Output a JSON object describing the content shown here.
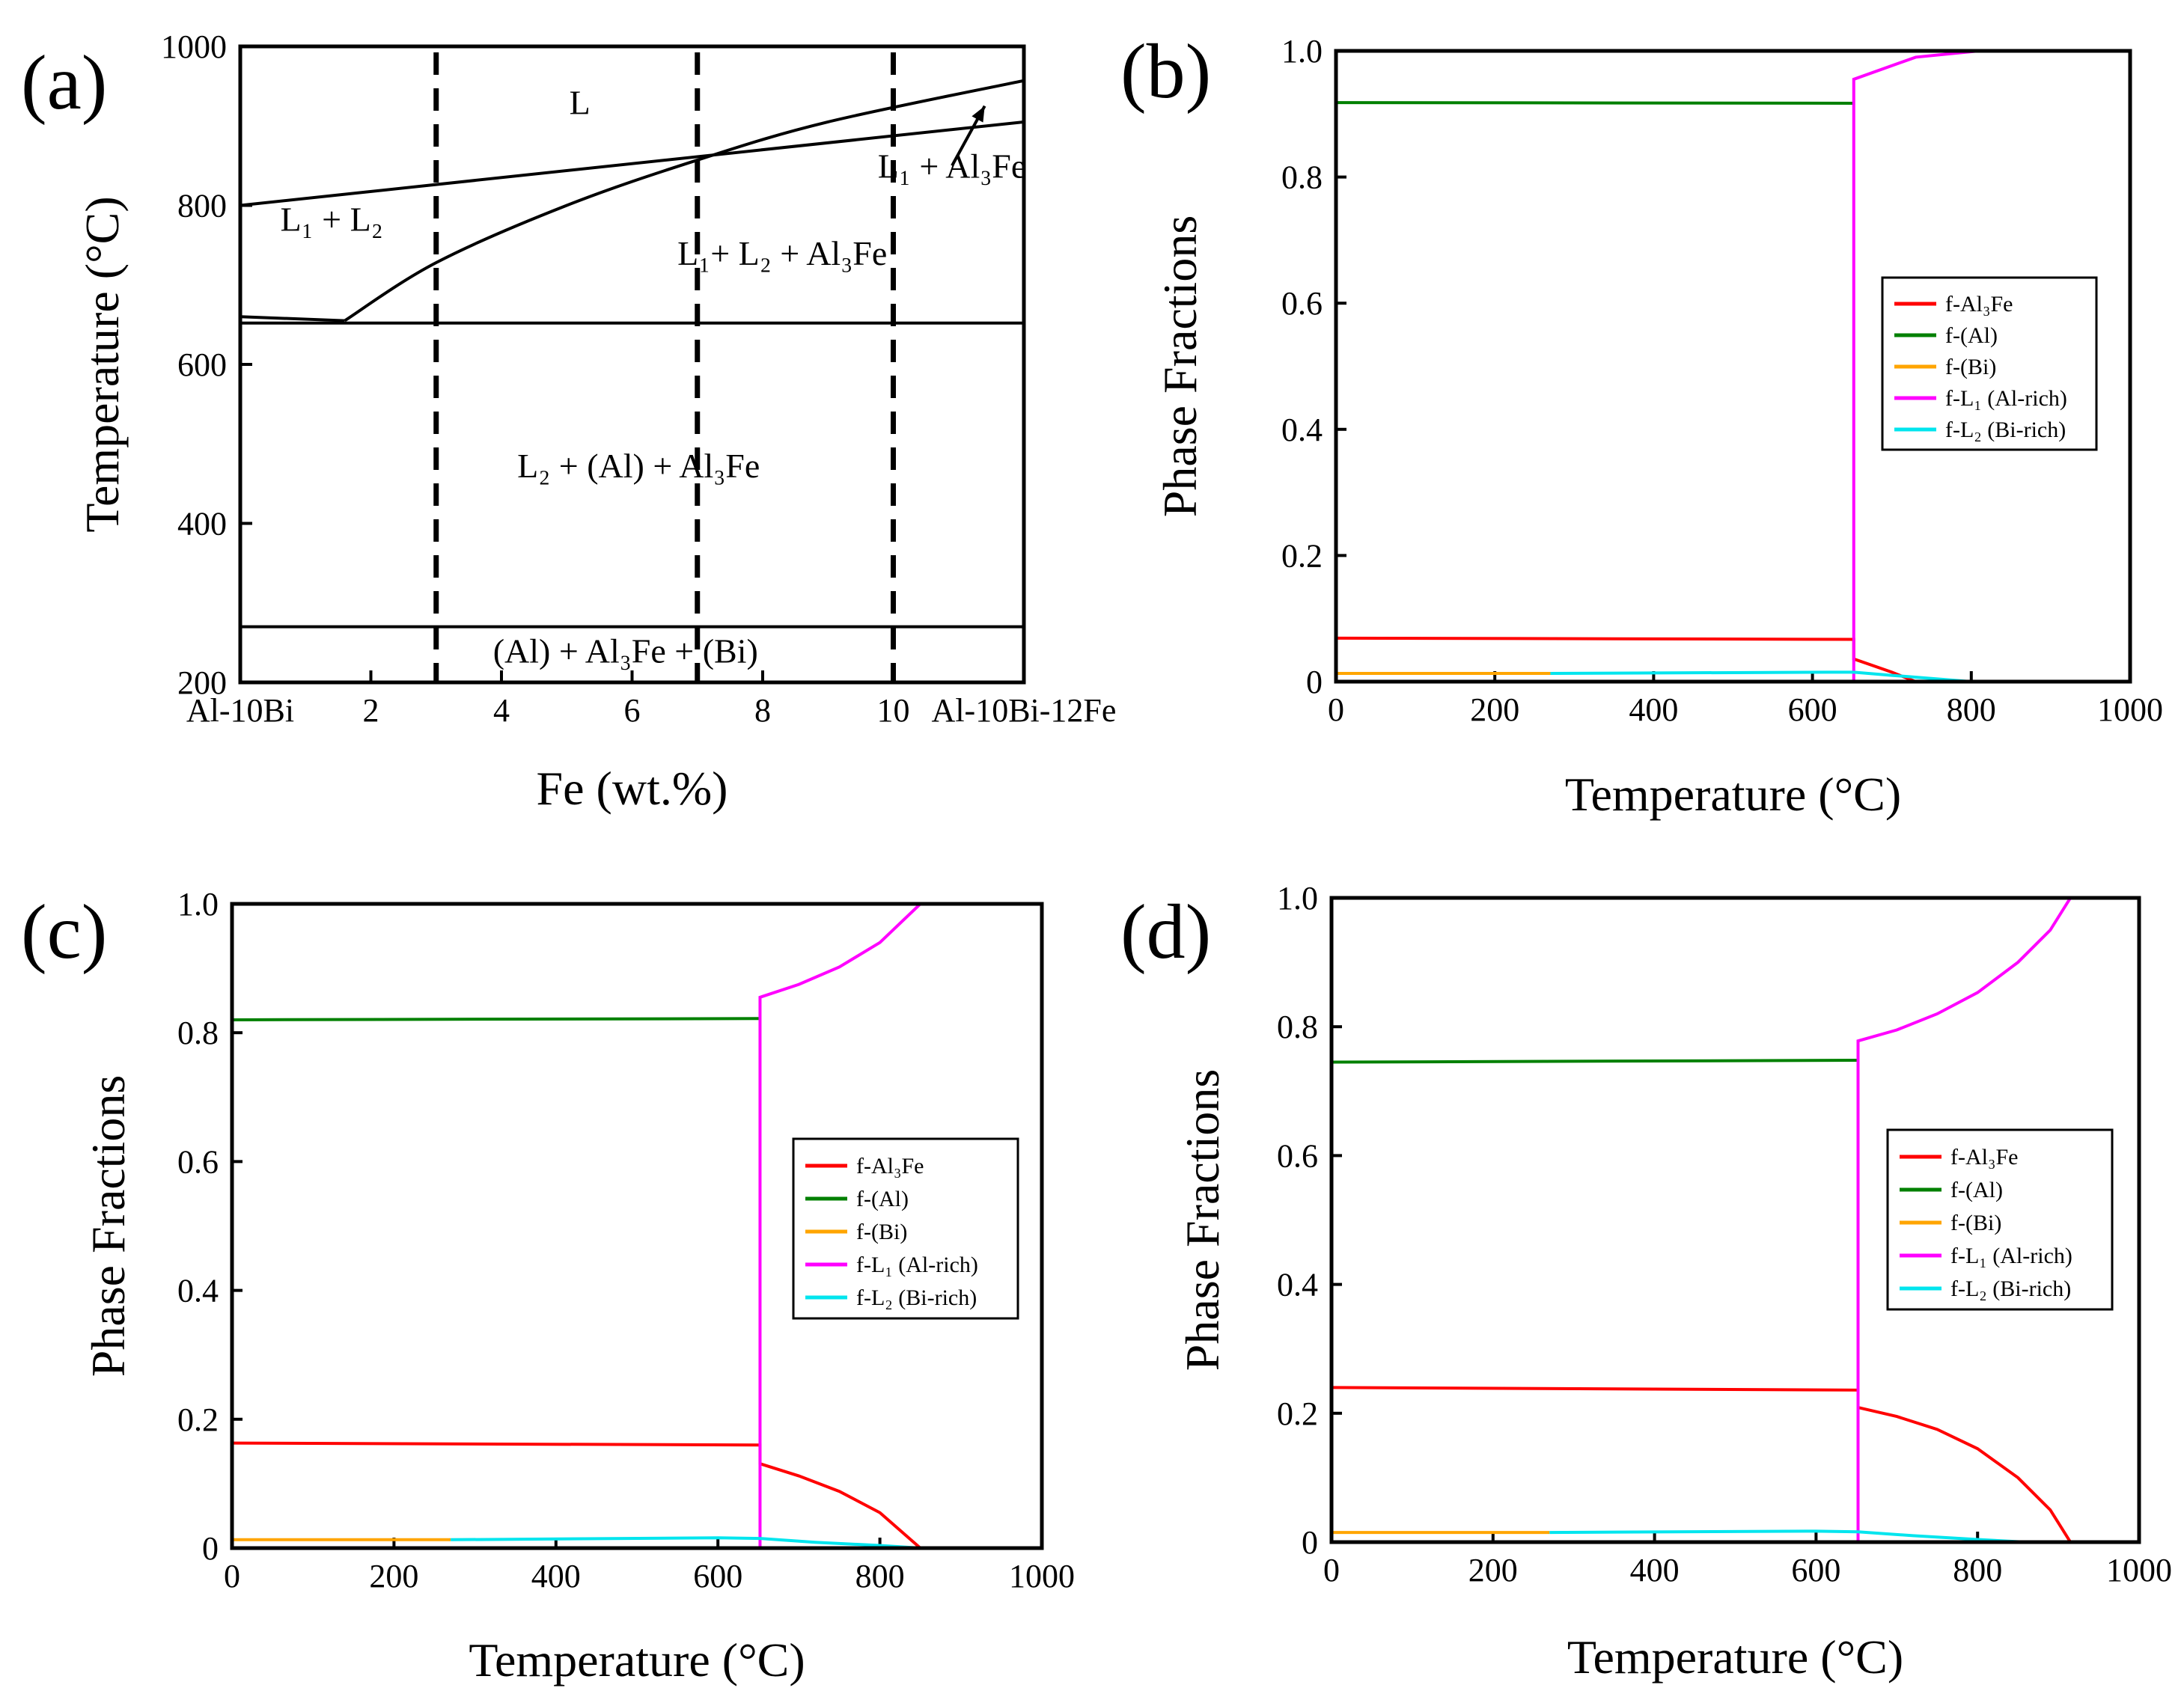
{
  "chart_data": [
    {
      "id": "a",
      "panel_label": "(a)",
      "type": "line",
      "title": "",
      "xlabel": "Fe (wt.%)",
      "ylabel": "Temperature (°C)",
      "xlim": [
        0,
        12
      ],
      "ylim": [
        200,
        1000
      ],
      "x_ticks": [
        {
          "value": 0,
          "label": "Al-10Bi"
        },
        {
          "value": 2,
          "label": "2"
        },
        {
          "value": 4,
          "label": "4"
        },
        {
          "value": 6,
          "label": "6"
        },
        {
          "value": 8,
          "label": "8"
        },
        {
          "value": 10,
          "label": "10"
        },
        {
          "value": 12,
          "label": "Al-10Bi-12Fe"
        }
      ],
      "y_ticks": [
        200,
        400,
        600,
        800,
        1000
      ],
      "phase_boundaries": [
        {
          "name": "liquid-miscibility-line",
          "x": [
            0,
            12
          ],
          "y": [
            800,
            905
          ]
        },
        {
          "name": "Al3Fe-liquidus",
          "x": [
            1.6,
            3,
            5,
            7,
            9,
            12
          ],
          "y": [
            655,
            728,
            800,
            857,
            905,
            957
          ]
        },
        {
          "name": "monotectic-corner",
          "x": [
            0,
            1.6
          ],
          "y": [
            660,
            655
          ]
        },
        {
          "name": "monotectic-isotherm",
          "x": [
            0,
            12
          ],
          "y": [
            652,
            652
          ]
        },
        {
          "name": "Bi-eutectic-isotherm",
          "x": [
            0,
            12
          ],
          "y": [
            270,
            270
          ]
        }
      ],
      "composition_markers": [
        3,
        7,
        10
      ],
      "region_labels": [
        {
          "text": "L",
          "x": 5.2,
          "y": 915
        },
        {
          "text": "L₁ + L₂",
          "x": 1.4,
          "y": 768
        },
        {
          "text": "L₁ + Al₃Fe",
          "x": 10.9,
          "y": 835
        },
        {
          "text": "L₁+ L₂ + Al₃Fe",
          "x": 8.3,
          "y": 725
        },
        {
          "text": "L₂ + (Al) + Al₃Fe",
          "x": 6.1,
          "y": 458
        },
        {
          "text": "(Al) + Al₃Fe + (Bi)",
          "x": 5.9,
          "y": 225
        }
      ],
      "annotation_arrow": {
        "from": [
          10.9,
          850
        ],
        "to": [
          11.4,
          925
        ]
      }
    },
    {
      "id": "b",
      "panel_label": "(b)",
      "type": "line",
      "title": "",
      "xlabel": "Temperature (°C)",
      "ylabel": "Phase Fractions",
      "xlim": [
        0,
        1000
      ],
      "ylim": [
        0,
        1.0
      ],
      "x_ticks": [
        0,
        200,
        400,
        600,
        800,
        1000
      ],
      "y_ticks": [
        0,
        0.2,
        0.4,
        0.6,
        0.8,
        1.0
      ],
      "y_tick_labels": [
        "0",
        "0.2",
        "0.4",
        "0.6",
        "0.8",
        "1.0"
      ],
      "legend": [
        "f-Al₃Fe",
        "f-(Al)",
        "f-(Bi)",
        "f-L₁ (Al-rich)",
        "f-L₂ (Bi-rich)"
      ],
      "series": [
        {
          "name": "f-Al₃Fe",
          "color": "#ff0000",
          "x": [
            0,
            652,
            652,
            700,
            730
          ],
          "y": [
            0.069,
            0.067,
            0.036,
            0.015,
            0
          ]
        },
        {
          "name": "f-(Al)",
          "color": "#008000",
          "x": [
            0,
            652
          ],
          "y": [
            0.918,
            0.917
          ]
        },
        {
          "name": "f-(Bi)",
          "color": "#ffa500",
          "x": [
            0,
            270
          ],
          "y": [
            0.013,
            0.013
          ]
        },
        {
          "name": "f-L₁ (Al-rich)",
          "color": "#ff00ff",
          "x": [
            652,
            652,
            730,
            810
          ],
          "y": [
            0,
            0.955,
            0.99,
            1.0
          ]
        },
        {
          "name": "f-L₂ (Bi-rich)",
          "color": "#00e5ee",
          "x": [
            270,
            620,
            652,
            700,
            800
          ],
          "y": [
            0.013,
            0.015,
            0.015,
            0.01,
            0
          ]
        }
      ]
    },
    {
      "id": "c",
      "panel_label": "(c)",
      "type": "line",
      "title": "",
      "xlabel": "Temperature (°C)",
      "ylabel": "Phase Fractions",
      "xlim": [
        0,
        1000
      ],
      "ylim": [
        0,
        1.0
      ],
      "x_ticks": [
        0,
        200,
        400,
        600,
        800,
        1000
      ],
      "y_ticks": [
        0,
        0.2,
        0.4,
        0.6,
        0.8,
        1.0
      ],
      "y_tick_labels": [
        "0",
        "0.2",
        "0.4",
        "0.6",
        "0.8",
        "1.0"
      ],
      "legend": [
        "f-Al₃Fe",
        "f-(Al)",
        "f-(Bi)",
        "f-L₁ (Al-rich)",
        "f-L₂ (Bi-rich)"
      ],
      "series": [
        {
          "name": "f-Al₃Fe",
          "color": "#ff0000",
          "x": [
            0,
            652,
            652,
            700,
            750,
            800,
            850
          ],
          "y": [
            0.163,
            0.16,
            0.131,
            0.112,
            0.088,
            0.055,
            0
          ]
        },
        {
          "name": "f-(Al)",
          "color": "#008000",
          "x": [
            0,
            652
          ],
          "y": [
            0.82,
            0.822
          ]
        },
        {
          "name": "f-(Bi)",
          "color": "#ffa500",
          "x": [
            0,
            270
          ],
          "y": [
            0.013,
            0.013
          ]
        },
        {
          "name": "f-L₁ (Al-rich)",
          "color": "#ff00ff",
          "x": [
            652,
            652,
            700,
            750,
            800,
            850
          ],
          "y": [
            0,
            0.855,
            0.875,
            0.902,
            0.94,
            1.0
          ]
        },
        {
          "name": "f-L₂ (Bi-rich)",
          "color": "#00e5ee",
          "x": [
            270,
            600,
            652,
            720,
            800,
            850
          ],
          "y": [
            0.013,
            0.016,
            0.015,
            0.009,
            0.004,
            0
          ]
        }
      ]
    },
    {
      "id": "d",
      "panel_label": "(d)",
      "type": "line",
      "title": "",
      "xlabel": "Temperature (°C)",
      "ylabel": "Phase Fractions",
      "xlim": [
        0,
        1000
      ],
      "ylim": [
        0,
        1.0
      ],
      "x_ticks": [
        0,
        200,
        400,
        600,
        800,
        1000
      ],
      "y_ticks": [
        0,
        0.2,
        0.4,
        0.6,
        0.8,
        1.0
      ],
      "y_tick_labels": [
        "0",
        "0.2",
        "0.4",
        "0.6",
        "0.8",
        "1.0"
      ],
      "legend": [
        "f-Al₃Fe",
        "f-(Al)",
        "f-(Bi)",
        "f-L₁ (Al-rich)",
        "f-L₂ (Bi-rich)"
      ],
      "series": [
        {
          "name": "f-Al₃Fe",
          "color": "#ff0000",
          "x": [
            0,
            652,
            652,
            700,
            750,
            800,
            850,
            890,
            915
          ],
          "y": [
            0.24,
            0.236,
            0.209,
            0.195,
            0.175,
            0.145,
            0.1,
            0.05,
            0
          ]
        },
        {
          "name": "f-(Al)",
          "color": "#008000",
          "x": [
            0,
            652
          ],
          "y": [
            0.745,
            0.748
          ]
        },
        {
          "name": "f-(Bi)",
          "color": "#ffa500",
          "x": [
            0,
            270
          ],
          "y": [
            0.015,
            0.015
          ]
        },
        {
          "name": "f-L₁ (Al-rich)",
          "color": "#ff00ff",
          "x": [
            652,
            652,
            700,
            750,
            800,
            850,
            890,
            915
          ],
          "y": [
            0,
            0.778,
            0.795,
            0.82,
            0.853,
            0.9,
            0.95,
            1.0
          ]
        },
        {
          "name": "f-L₂ (Bi-rich)",
          "color": "#00e5ee",
          "x": [
            270,
            600,
            652,
            720,
            800,
            860
          ],
          "y": [
            0.015,
            0.017,
            0.016,
            0.01,
            0.004,
            0
          ]
        }
      ]
    }
  ]
}
